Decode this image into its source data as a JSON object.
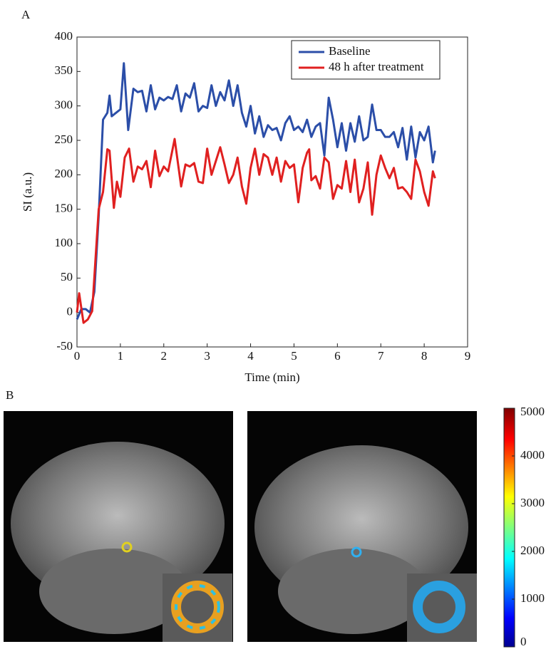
{
  "panel_labels": {
    "a": "A",
    "b": "B"
  },
  "chart_data": {
    "type": "line",
    "xlabel": "Time (min)",
    "ylabel": "SI (a.u.)",
    "xlim": [
      0,
      9
    ],
    "xticks": [
      0,
      1,
      2,
      3,
      4,
      5,
      6,
      7,
      8,
      9
    ],
    "ylim": [
      -50,
      400
    ],
    "yticks": [
      -50,
      0,
      50,
      100,
      150,
      200,
      250,
      300,
      350,
      400
    ],
    "grid": false,
    "legend": "upper right",
    "series": [
      {
        "name": "Baseline",
        "color": "#2b4ea8",
        "x": [
          0,
          0.1,
          0.2,
          0.3,
          0.4,
          0.5,
          0.6,
          0.7,
          0.75,
          0.8,
          0.9,
          1.0,
          1.08,
          1.18,
          1.3,
          1.4,
          1.5,
          1.6,
          1.7,
          1.8,
          1.9,
          2.0,
          2.1,
          2.2,
          2.3,
          2.4,
          2.5,
          2.6,
          2.7,
          2.8,
          2.9,
          3.0,
          3.1,
          3.2,
          3.3,
          3.4,
          3.5,
          3.6,
          3.7,
          3.8,
          3.9,
          4.0,
          4.1,
          4.2,
          4.3,
          4.4,
          4.5,
          4.6,
          4.7,
          4.8,
          4.9,
          5.0,
          5.1,
          5.2,
          5.3,
          5.4,
          5.5,
          5.6,
          5.7,
          5.8,
          5.9,
          6.0,
          6.1,
          6.2,
          6.3,
          6.4,
          6.5,
          6.6,
          6.7,
          6.8,
          6.9,
          7.0,
          7.1,
          7.2,
          7.3,
          7.4,
          7.5,
          7.6,
          7.7,
          7.8,
          7.9,
          8.0,
          8.1,
          8.2,
          8.25
        ],
        "values": [
          -10,
          5,
          5,
          0,
          30,
          140,
          280,
          290,
          315,
          285,
          290,
          295,
          362,
          265,
          325,
          320,
          322,
          292,
          330,
          295,
          312,
          308,
          313,
          310,
          330,
          292,
          318,
          312,
          333,
          292,
          300,
          297,
          330,
          300,
          320,
          308,
          337,
          300,
          330,
          290,
          270,
          300,
          260,
          285,
          255,
          272,
          265,
          268,
          250,
          275,
          285,
          265,
          270,
          262,
          280,
          255,
          270,
          275,
          228,
          312,
          280,
          240,
          275,
          235,
          275,
          248,
          285,
          250,
          255,
          302,
          265,
          265,
          255,
          255,
          262,
          240,
          268,
          222,
          270,
          225,
          262,
          250,
          270,
          218,
          235
        ]
      },
      {
        "name": "48 h after treatment",
        "color": "#e02020",
        "x": [
          0,
          0.05,
          0.15,
          0.25,
          0.35,
          0.5,
          0.6,
          0.7,
          0.75,
          0.85,
          0.92,
          1.0,
          1.1,
          1.2,
          1.3,
          1.4,
          1.5,
          1.6,
          1.7,
          1.8,
          1.9,
          2.0,
          2.1,
          2.25,
          2.4,
          2.5,
          2.6,
          2.7,
          2.8,
          2.9,
          3.0,
          3.1,
          3.2,
          3.3,
          3.4,
          3.5,
          3.6,
          3.7,
          3.8,
          3.9,
          4.0,
          4.1,
          4.2,
          4.3,
          4.4,
          4.5,
          4.6,
          4.7,
          4.8,
          4.9,
          5.0,
          5.1,
          5.2,
          5.3,
          5.35,
          5.4,
          5.5,
          5.6,
          5.7,
          5.8,
          5.9,
          6.0,
          6.1,
          6.2,
          6.3,
          6.4,
          6.5,
          6.6,
          6.7,
          6.8,
          6.9,
          7.0,
          7.1,
          7.2,
          7.3,
          7.4,
          7.5,
          7.6,
          7.7,
          7.8,
          7.9,
          8.0,
          8.1,
          8.2,
          8.25
        ],
        "values": [
          0,
          28,
          -15,
          -10,
          2,
          150,
          175,
          237,
          235,
          152,
          190,
          168,
          225,
          238,
          190,
          212,
          208,
          220,
          182,
          235,
          198,
          212,
          205,
          252,
          183,
          215,
          212,
          217,
          190,
          188,
          238,
          200,
          220,
          240,
          215,
          188,
          200,
          225,
          183,
          158,
          210,
          238,
          200,
          230,
          225,
          200,
          225,
          190,
          220,
          210,
          215,
          160,
          210,
          232,
          237,
          192,
          198,
          180,
          225,
          218,
          165,
          185,
          180,
          220,
          175,
          222,
          160,
          180,
          218,
          142,
          200,
          228,
          210,
          195,
          210,
          180,
          182,
          175,
          165,
          222,
          205,
          175,
          155,
          205,
          195
        ]
      }
    ]
  },
  "colorbar": {
    "lim": [
      0,
      5000
    ],
    "ticks": [
      0,
      1000,
      2000,
      3000,
      4000,
      5000
    ]
  }
}
